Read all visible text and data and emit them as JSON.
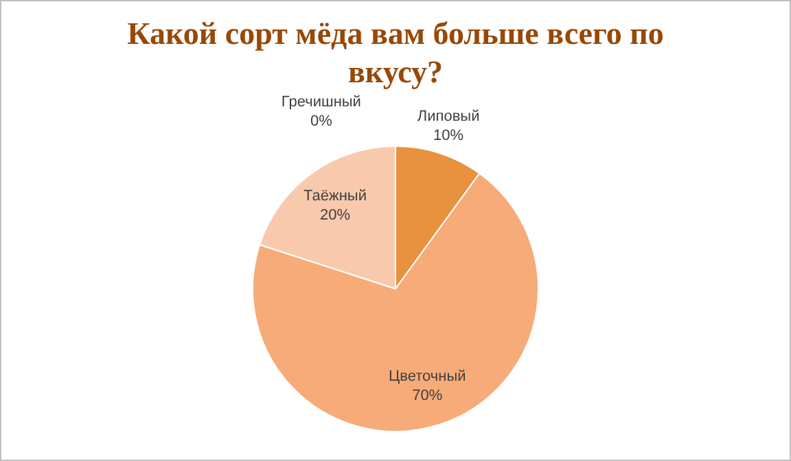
{
  "chart_data": {
    "type": "pie",
    "title": "Какой сорт мёда вам больше всего по вкусу?",
    "categories": [
      "Липовый",
      "Цветочный",
      "Таёжный",
      "Гречишный"
    ],
    "values": [
      10,
      70,
      20,
      0
    ],
    "colors": [
      "#e8913f",
      "#f7ab78",
      "#f9c9ae",
      "#fbe5d6"
    ],
    "value_labels": [
      "10%",
      "70%",
      "20%",
      "0%"
    ],
    "legend": false
  }
}
